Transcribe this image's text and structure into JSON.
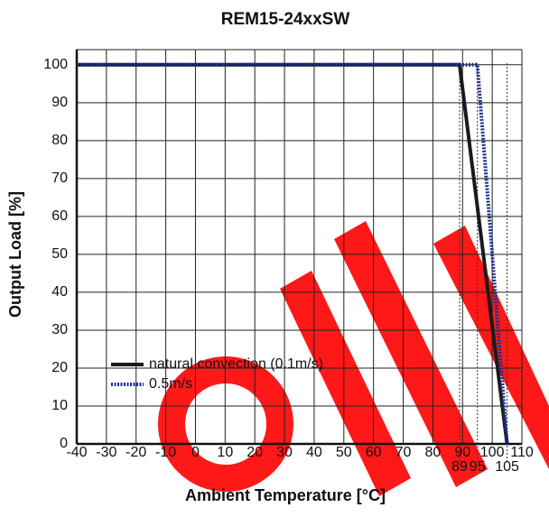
{
  "chart_data": {
    "type": "line",
    "title": "REM15-24xxSW",
    "x_label": "Ambient Temperature [°C]",
    "y_label": "Output Load [%]",
    "xlim": [
      -40,
      110
    ],
    "xticks": [
      -40,
      -30,
      -20,
      -10,
      0,
      10,
      20,
      30,
      40,
      50,
      60,
      70,
      80,
      90,
      100,
      110
    ],
    "ylim": [
      0,
      104
    ],
    "yticks": [
      0,
      10,
      20,
      30,
      40,
      50,
      60,
      70,
      80,
      90,
      100
    ],
    "marked_x": [
      89,
      95,
      105
    ],
    "grid": true,
    "legend": "lower left",
    "series": [
      {
        "name": "natural convection (0.1m/s)",
        "color": "#1a1a1a",
        "style": "solid",
        "x": [
          -40,
          89,
          105
        ],
        "values": [
          100,
          100,
          0
        ]
      },
      {
        "name": "0.5m/s",
        "color": "#1f2f8f",
        "style": "dotted",
        "x": [
          -40,
          95,
          105
        ],
        "values": [
          100,
          100,
          0
        ]
      }
    ]
  }
}
